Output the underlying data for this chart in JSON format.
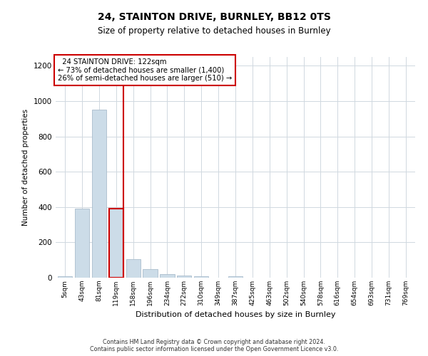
{
  "title1": "24, STAINTON DRIVE, BURNLEY, BB12 0TS",
  "title2": "Size of property relative to detached houses in Burnley",
  "xlabel": "Distribution of detached houses by size in Burnley",
  "ylabel": "Number of detached properties",
  "footer1": "Contains HM Land Registry data © Crown copyright and database right 2024.",
  "footer2": "Contains public sector information licensed under the Open Government Licence v3.0.",
  "bar_labels": [
    "5sqm",
    "43sqm",
    "81sqm",
    "119sqm",
    "158sqm",
    "196sqm",
    "234sqm",
    "272sqm",
    "310sqm",
    "349sqm",
    "387sqm",
    "425sqm",
    "463sqm",
    "502sqm",
    "540sqm",
    "578sqm",
    "616sqm",
    "654sqm",
    "693sqm",
    "731sqm",
    "769sqm"
  ],
  "bar_values": [
    10,
    390,
    950,
    390,
    105,
    50,
    20,
    12,
    10,
    0,
    10,
    0,
    0,
    0,
    0,
    0,
    0,
    0,
    0,
    0,
    0
  ],
  "bar_color": "#ccdce8",
  "bar_edgecolor": "#aabccc",
  "highlight_index": 3,
  "highlight_color": "#cc0000",
  "annotation_line1": "  24 STAINTON DRIVE: 122sqm",
  "annotation_line2": "← 73% of detached houses are smaller (1,400)",
  "annotation_line3": "26% of semi-detached houses are larger (510) →",
  "annotation_box_color": "#ffffff",
  "annotation_box_edgecolor": "#cc0000",
  "ylim": [
    0,
    1250
  ],
  "yticks": [
    0,
    200,
    400,
    600,
    800,
    1000,
    1200
  ],
  "background_color": "#ffffff",
  "grid_color": "#d0d8e0"
}
